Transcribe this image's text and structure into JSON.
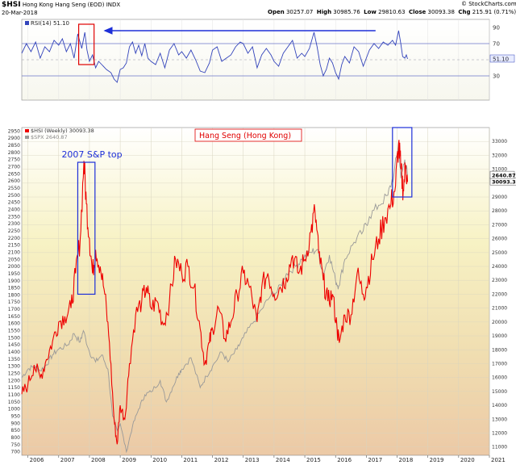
{
  "header": {
    "symbol": "$HSI",
    "name": "Hong Kong Hang Seng (EOD)",
    "exchange": "INDX",
    "date": "20-Mar-2018",
    "open_label": "Open",
    "open": "30257.07",
    "high_label": "High",
    "high": "30985.76",
    "low_label": "Low",
    "low": "29810.63",
    "close_label": "Close",
    "close": "30093.38",
    "chg_label": "Chg",
    "chg": "215.91 (0.71%)",
    "credit": "© StockCharts.com"
  },
  "chart_data": {
    "type": "line",
    "x_years": [
      "2006",
      "2007",
      "2008",
      "2009",
      "2010",
      "2011",
      "2012",
      "2013",
      "2014",
      "2015",
      "2016",
      "2017",
      "2018",
      "2019",
      "2020",
      "2021"
    ],
    "rsi_panel": {
      "legend": "RSI(14) 51.10",
      "value_tag": "51.10",
      "ylim": [
        0,
        100
      ],
      "ticks": [
        30,
        50,
        70,
        90
      ],
      "levels": [
        30,
        70
      ],
      "color": "#3344bb",
      "points": [
        [
          2005.8,
          58
        ],
        [
          2005.95,
          70
        ],
        [
          2006.1,
          60
        ],
        [
          2006.25,
          72
        ],
        [
          2006.4,
          52
        ],
        [
          2006.55,
          66
        ],
        [
          2006.7,
          60
        ],
        [
          2006.85,
          74
        ],
        [
          2007.0,
          68
        ],
        [
          2007.12,
          76
        ],
        [
          2007.25,
          60
        ],
        [
          2007.38,
          70
        ],
        [
          2007.5,
          52
        ],
        [
          2007.62,
          82
        ],
        [
          2007.75,
          64
        ],
        [
          2007.85,
          84
        ],
        [
          2007.92,
          62
        ],
        [
          2008.0,
          48
        ],
        [
          2008.1,
          56
        ],
        [
          2008.2,
          40
        ],
        [
          2008.3,
          48
        ],
        [
          2008.4,
          44
        ],
        [
          2008.55,
          38
        ],
        [
          2008.7,
          34
        ],
        [
          2008.8,
          26
        ],
        [
          2008.9,
          22
        ],
        [
          2009.0,
          38
        ],
        [
          2009.1,
          40
        ],
        [
          2009.2,
          46
        ],
        [
          2009.3,
          66
        ],
        [
          2009.4,
          72
        ],
        [
          2009.5,
          58
        ],
        [
          2009.6,
          68
        ],
        [
          2009.7,
          55
        ],
        [
          2009.8,
          70
        ],
        [
          2009.9,
          52
        ],
        [
          2010.0,
          48
        ],
        [
          2010.15,
          44
        ],
        [
          2010.3,
          58
        ],
        [
          2010.45,
          40
        ],
        [
          2010.6,
          62
        ],
        [
          2010.75,
          70
        ],
        [
          2010.9,
          56
        ],
        [
          2011.0,
          60
        ],
        [
          2011.15,
          52
        ],
        [
          2011.3,
          62
        ],
        [
          2011.45,
          50
        ],
        [
          2011.6,
          36
        ],
        [
          2011.75,
          34
        ],
        [
          2011.9,
          46
        ],
        [
          2012.0,
          62
        ],
        [
          2012.15,
          66
        ],
        [
          2012.3,
          48
        ],
        [
          2012.45,
          52
        ],
        [
          2012.6,
          56
        ],
        [
          2012.75,
          66
        ],
        [
          2012.9,
          72
        ],
        [
          2013.0,
          70
        ],
        [
          2013.15,
          58
        ],
        [
          2013.3,
          66
        ],
        [
          2013.45,
          40
        ],
        [
          2013.6,
          56
        ],
        [
          2013.75,
          64
        ],
        [
          2013.9,
          56
        ],
        [
          2014.0,
          48
        ],
        [
          2014.15,
          42
        ],
        [
          2014.3,
          58
        ],
        [
          2014.45,
          66
        ],
        [
          2014.6,
          74
        ],
        [
          2014.75,
          52
        ],
        [
          2014.9,
          58
        ],
        [
          2015.0,
          54
        ],
        [
          2015.15,
          64
        ],
        [
          2015.3,
          84
        ],
        [
          2015.4,
          66
        ],
        [
          2015.5,
          44
        ],
        [
          2015.6,
          30
        ],
        [
          2015.7,
          38
        ],
        [
          2015.8,
          52
        ],
        [
          2015.9,
          46
        ],
        [
          2016.0,
          34
        ],
        [
          2016.1,
          26
        ],
        [
          2016.2,
          44
        ],
        [
          2016.3,
          54
        ],
        [
          2016.45,
          46
        ],
        [
          2016.6,
          66
        ],
        [
          2016.75,
          60
        ],
        [
          2016.9,
          42
        ],
        [
          2017.0,
          52
        ],
        [
          2017.1,
          62
        ],
        [
          2017.25,
          70
        ],
        [
          2017.4,
          64
        ],
        [
          2017.55,
          72
        ],
        [
          2017.7,
          68
        ],
        [
          2017.85,
          74
        ],
        [
          2017.95,
          68
        ],
        [
          2018.05,
          86
        ],
        [
          2018.12,
          70
        ],
        [
          2018.18,
          54
        ],
        [
          2018.25,
          52
        ],
        [
          2018.3,
          56
        ],
        [
          2018.34,
          51
        ]
      ],
      "highlight_box": {
        "x": [
          2007.65,
          2008.15
        ],
        "y": [
          44,
          94
        ]
      },
      "arrow": {
        "from": [
          2017.3,
          86
        ],
        "to": [
          2008.5,
          86
        ]
      }
    },
    "price_panel": {
      "title": "Hang Seng (Hong Kong)",
      "legend": [
        {
          "name": "$HSI (Weekly) 30093.38",
          "color": "#ee0000"
        },
        {
          "name": "$SPX 2640.87",
          "color": "#999999"
        }
      ],
      "spx_scale": {
        "ylim": [
          675,
          2975
        ],
        "ticks": [
          700,
          750,
          800,
          850,
          900,
          950,
          1000,
          1050,
          1100,
          1150,
          1200,
          1250,
          1300,
          1350,
          1400,
          1450,
          1500,
          1550,
          1600,
          1650,
          1700,
          1750,
          1800,
          1850,
          1900,
          1950,
          2000,
          2050,
          2100,
          2150,
          2200,
          2250,
          2300,
          2350,
          2400,
          2450,
          2500,
          2550,
          2600,
          2650,
          2700,
          2750,
          2800,
          2850,
          2900,
          2950
        ]
      },
      "hsi_scale": {
        "ylim": [
          10400,
          34000
        ],
        "ticks": [
          11000,
          12000,
          13000,
          14000,
          15000,
          16000,
          17000,
          18000,
          19000,
          20000,
          21000,
          22000,
          23000,
          24000,
          25000,
          26000,
          27000,
          28000,
          29000,
          30000,
          31000,
          32000,
          33000
        ]
      },
      "hsi_tag": "30093.38",
      "spx_tag": "2640.87",
      "hsi": {
        "color": "#ee0000",
        "points": [
          [
            2005.8,
            14800
          ],
          [
            2006.0,
            15500
          ],
          [
            2006.2,
            16900
          ],
          [
            2006.4,
            16000
          ],
          [
            2006.6,
            17300
          ],
          [
            2006.8,
            18600
          ],
          [
            2007.0,
            20000
          ],
          [
            2007.2,
            20400
          ],
          [
            2007.4,
            21000
          ],
          [
            2007.55,
            23500
          ],
          [
            2007.7,
            26000
          ],
          [
            2007.82,
            31600
          ],
          [
            2007.9,
            28500
          ],
          [
            2008.0,
            26000
          ],
          [
            2008.1,
            23500
          ],
          [
            2008.2,
            25200
          ],
          [
            2008.35,
            24000
          ],
          [
            2008.5,
            22000
          ],
          [
            2008.65,
            18500
          ],
          [
            2008.8,
            13000
          ],
          [
            2008.9,
            11200
          ],
          [
            2009.0,
            14000
          ],
          [
            2009.15,
            13000
          ],
          [
            2009.3,
            17000
          ],
          [
            2009.5,
            20500
          ],
          [
            2009.7,
            21500
          ],
          [
            2009.85,
            22500
          ],
          [
            2010.0,
            21000
          ],
          [
            2010.2,
            21500
          ],
          [
            2010.4,
            19800
          ],
          [
            2010.6,
            21500
          ],
          [
            2010.8,
            24500
          ],
          [
            2011.0,
            23500
          ],
          [
            2011.2,
            24000
          ],
          [
            2011.4,
            22500
          ],
          [
            2011.6,
            19500
          ],
          [
            2011.75,
            17000
          ],
          [
            2011.9,
            18500
          ],
          [
            2012.0,
            19500
          ],
          [
            2012.2,
            21000
          ],
          [
            2012.4,
            18800
          ],
          [
            2012.6,
            20000
          ],
          [
            2012.8,
            22000
          ],
          [
            2013.0,
            23500
          ],
          [
            2013.2,
            22500
          ],
          [
            2013.45,
            20000
          ],
          [
            2013.6,
            22500
          ],
          [
            2013.8,
            23500
          ],
          [
            2014.0,
            22000
          ],
          [
            2014.2,
            22500
          ],
          [
            2014.4,
            23200
          ],
          [
            2014.6,
            24800
          ],
          [
            2014.8,
            23500
          ],
          [
            2015.0,
            24500
          ],
          [
            2015.2,
            26500
          ],
          [
            2015.33,
            28000
          ],
          [
            2015.45,
            25000
          ],
          [
            2015.6,
            23000
          ],
          [
            2015.75,
            21500
          ],
          [
            2015.9,
            22000
          ],
          [
            2016.05,
            19500
          ],
          [
            2016.12,
            18500
          ],
          [
            2016.3,
            20500
          ],
          [
            2016.5,
            20500
          ],
          [
            2016.7,
            23500
          ],
          [
            2016.9,
            22000
          ],
          [
            2017.0,
            22500
          ],
          [
            2017.2,
            24500
          ],
          [
            2017.4,
            26000
          ],
          [
            2017.6,
            27500
          ],
          [
            2017.8,
            28500
          ],
          [
            2017.95,
            29800
          ],
          [
            2018.05,
            32900
          ],
          [
            2018.12,
            31000
          ],
          [
            2018.2,
            29500
          ],
          [
            2018.28,
            31300
          ],
          [
            2018.34,
            30093
          ]
        ]
      },
      "spx": {
        "color": "#999999",
        "points": [
          [
            2005.8,
            1220
          ],
          [
            2006.0,
            1280
          ],
          [
            2006.2,
            1300
          ],
          [
            2006.4,
            1270
          ],
          [
            2006.6,
            1310
          ],
          [
            2006.8,
            1380
          ],
          [
            2007.0,
            1420
          ],
          [
            2007.3,
            1450
          ],
          [
            2007.5,
            1530
          ],
          [
            2007.7,
            1470
          ],
          [
            2007.8,
            1550
          ],
          [
            2008.0,
            1400
          ],
          [
            2008.2,
            1330
          ],
          [
            2008.4,
            1380
          ],
          [
            2008.6,
            1280
          ],
          [
            2008.75,
            950
          ],
          [
            2008.9,
            850
          ],
          [
            2009.0,
            900
          ],
          [
            2009.2,
            700
          ],
          [
            2009.4,
            880
          ],
          [
            2009.6,
            1000
          ],
          [
            2009.8,
            1100
          ],
          [
            2010.0,
            1120
          ],
          [
            2010.3,
            1200
          ],
          [
            2010.5,
            1050
          ],
          [
            2010.7,
            1150
          ],
          [
            2010.9,
            1250
          ],
          [
            2011.0,
            1280
          ],
          [
            2011.3,
            1360
          ],
          [
            2011.6,
            1150
          ],
          [
            2011.8,
            1230
          ],
          [
            2012.0,
            1300
          ],
          [
            2012.3,
            1400
          ],
          [
            2012.5,
            1330
          ],
          [
            2012.8,
            1420
          ],
          [
            2013.0,
            1500
          ],
          [
            2013.3,
            1600
          ],
          [
            2013.6,
            1700
          ],
          [
            2013.9,
            1800
          ],
          [
            2014.1,
            1820
          ],
          [
            2014.4,
            1950
          ],
          [
            2014.7,
            2000
          ],
          [
            2014.9,
            2050
          ],
          [
            2015.2,
            2100
          ],
          [
            2015.4,
            2120
          ],
          [
            2015.6,
            1950
          ],
          [
            2015.8,
            2080
          ],
          [
            2016.0,
            1900
          ],
          [
            2016.1,
            1860
          ],
          [
            2016.3,
            2050
          ],
          [
            2016.6,
            2170
          ],
          [
            2016.9,
            2250
          ],
          [
            2017.1,
            2350
          ],
          [
            2017.4,
            2430
          ],
          [
            2017.7,
            2500
          ],
          [
            2017.9,
            2650
          ],
          [
            2018.05,
            2870
          ],
          [
            2018.12,
            2620
          ],
          [
            2018.25,
            2750
          ],
          [
            2018.34,
            2640
          ]
        ]
      },
      "annotation_2007": {
        "text": "2007 S&P top",
        "box": {
          "x": [
            2007.62,
            2008.18
          ],
          "y": [
            22000,
            31500
          ]
        }
      },
      "box_2018": {
        "x": [
          2017.85,
          2018.48
        ],
        "y": [
          29000,
          34000
        ]
      }
    }
  }
}
